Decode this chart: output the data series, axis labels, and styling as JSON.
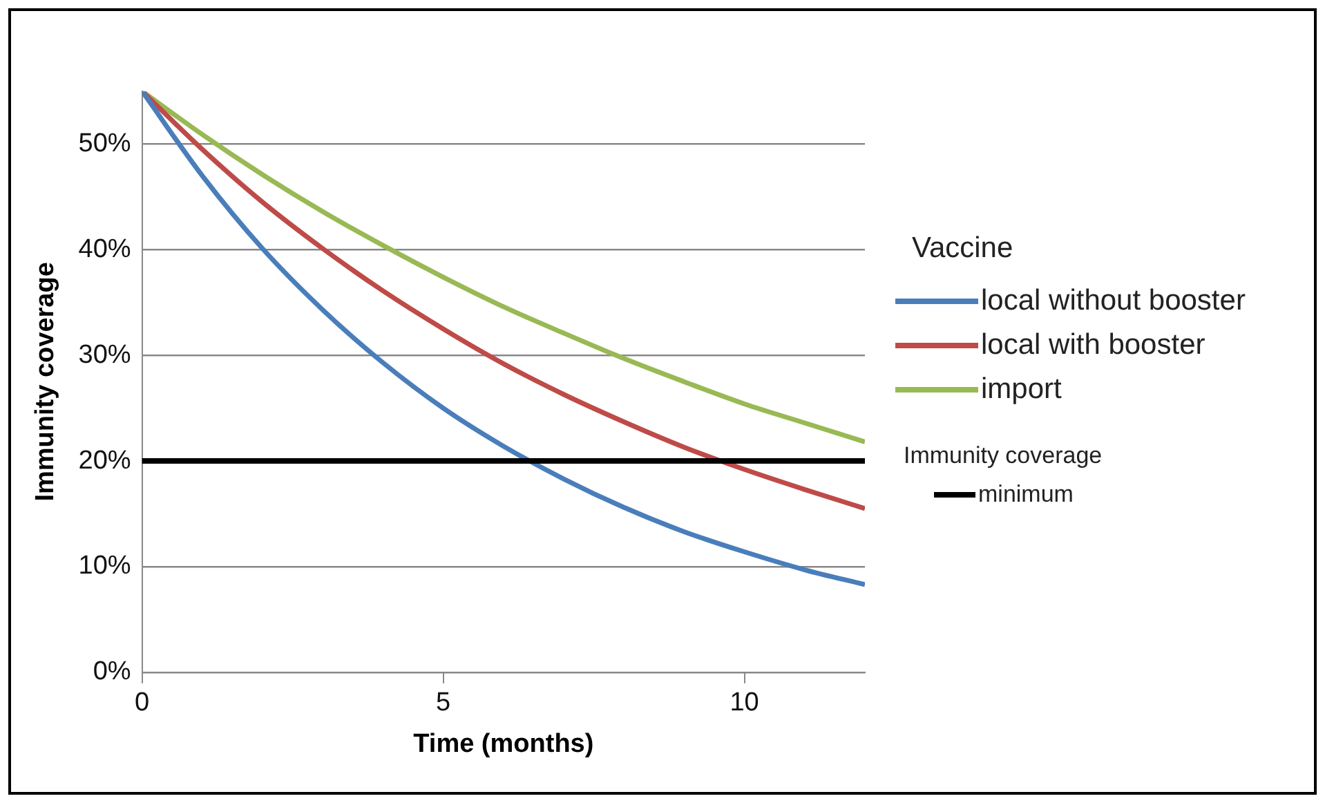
{
  "chart_data": {
    "type": "line",
    "xlabel": "Time (months)",
    "ylabel": "Immunity coverage",
    "legend_title": "Vaccine",
    "legend": "right",
    "x": [
      0,
      1,
      2,
      3,
      4,
      5,
      6,
      7,
      8,
      9,
      10,
      11,
      12
    ],
    "series": [
      {
        "name": "local without booster",
        "color": "#4a7ebb",
        "values": [
          55,
          47,
          40.1,
          34.3,
          29.3,
          25,
          21.4,
          18.3,
          15.6,
          13.3,
          11.4,
          9.7,
          8.3
        ]
      },
      {
        "name": "local with booster",
        "color": "#be4b48",
        "values": [
          55,
          49.5,
          44.5,
          40.1,
          36.1,
          32.5,
          29.2,
          26.3,
          23.7,
          21.3,
          19.2,
          17.3,
          15.5
        ]
      },
      {
        "name": "import",
        "color": "#98b954",
        "values": [
          55,
          50.9,
          47.1,
          43.6,
          40.4,
          37.4,
          34.6,
          32.1,
          29.7,
          27.5,
          25.4,
          23.6,
          21.8
        ]
      }
    ],
    "ref_lines": [
      {
        "axis": "y",
        "value": 20,
        "label": "minimum",
        "color": "#000000"
      }
    ],
    "annotations": [
      "Immunity coverage"
    ],
    "xlim": [
      0,
      12
    ],
    "xticks": [
      0,
      5,
      10
    ],
    "ylim": [
      0,
      55
    ],
    "yticks": [
      {
        "value": 0,
        "label": "0%"
      },
      {
        "value": 10,
        "label": "10%"
      },
      {
        "value": 20,
        "label": "20%"
      },
      {
        "value": 30,
        "label": "30%"
      },
      {
        "value": 40,
        "label": "40%"
      },
      {
        "value": 50,
        "label": "50%"
      }
    ],
    "grid": "y",
    "marker": "none",
    "line_style": "solid"
  }
}
